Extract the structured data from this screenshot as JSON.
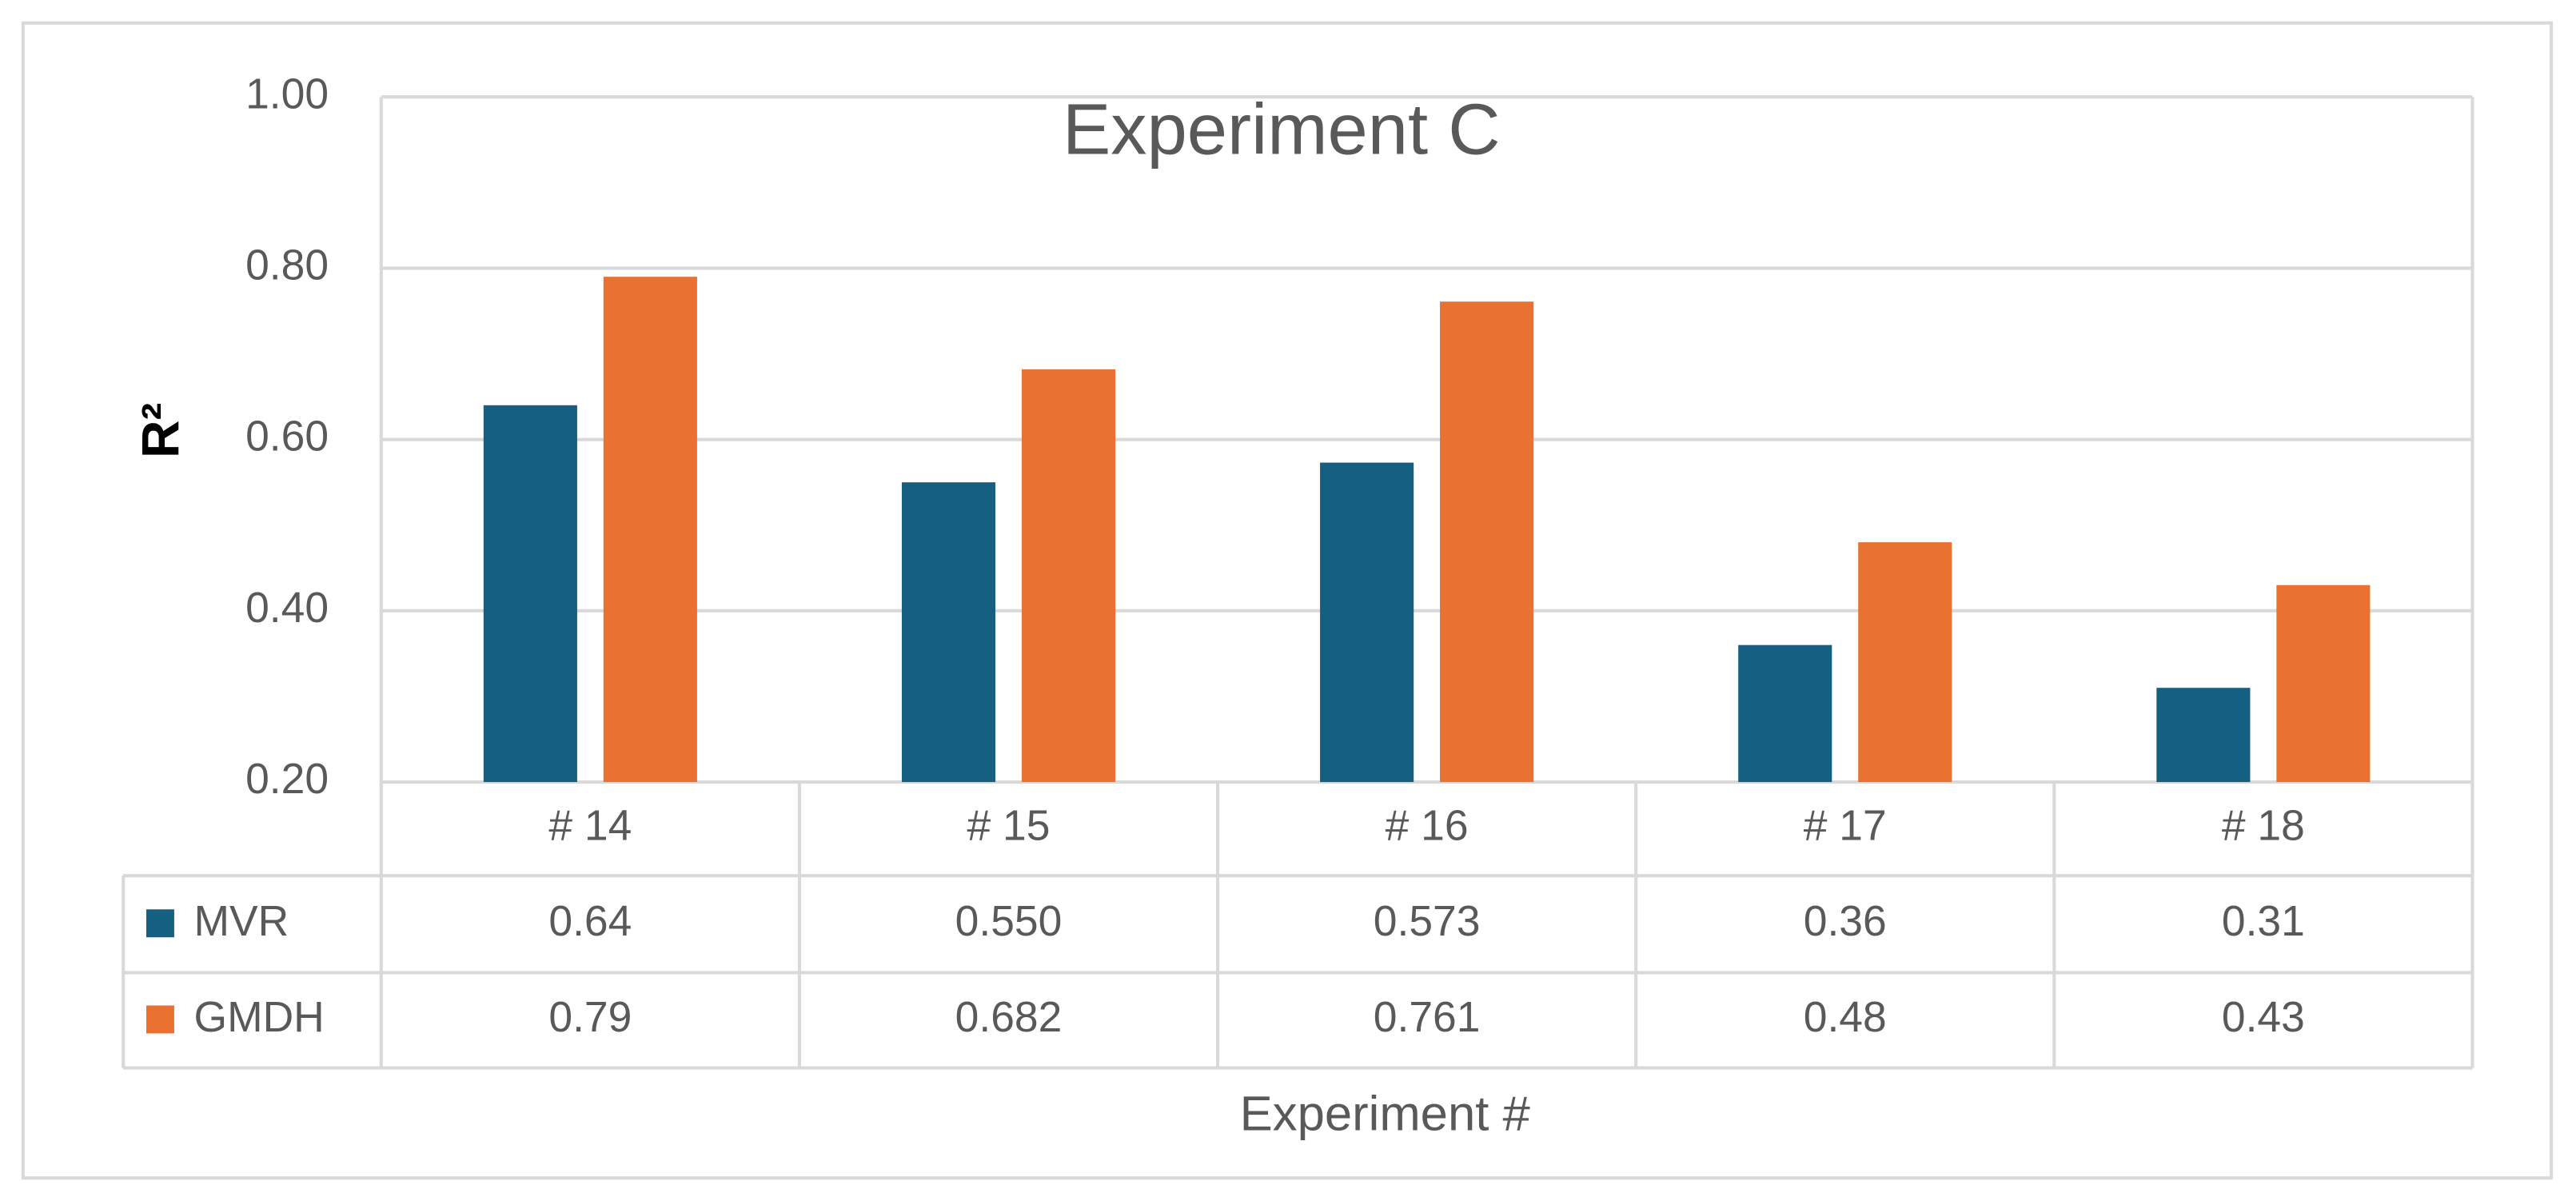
{
  "chart_data": {
    "type": "bar",
    "title": "Experiment C",
    "x_label": "Experiment #",
    "y_label": "R²",
    "categories": [
      "# 14",
      "# 15",
      "# 16",
      "# 17",
      "# 18"
    ],
    "series": [
      {
        "name": "MVR",
        "color": "#155f82",
        "values": [
          0.64,
          0.55,
          0.573,
          0.36,
          0.31
        ],
        "value_labels": [
          "0.64",
          "0.550",
          "0.573",
          "0.36",
          "0.31"
        ]
      },
      {
        "name": "GMDH",
        "color": "#e97132",
        "values": [
          0.79,
          0.682,
          0.761,
          0.48,
          0.43
        ],
        "value_labels": [
          "0.79",
          "0.682",
          "0.761",
          "0.48",
          "0.43"
        ]
      }
    ],
    "ylim": [
      0.2,
      1.0
    ],
    "yticks": [
      {
        "value": 0.2,
        "label": "0.20"
      },
      {
        "value": 0.4,
        "label": "0.40"
      },
      {
        "value": 0.6,
        "label": "0.60"
      },
      {
        "value": 0.8,
        "label": "0.80"
      },
      {
        "value": 1.0,
        "label": "1.00"
      }
    ],
    "grid": true,
    "data_table": true
  }
}
